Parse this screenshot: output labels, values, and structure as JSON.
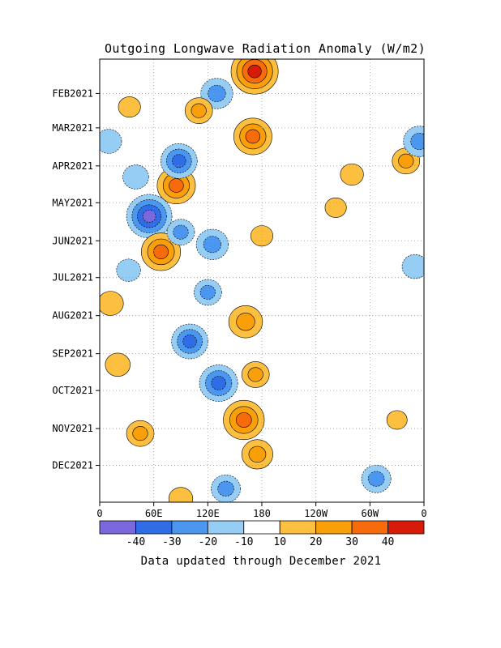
{
  "chart_data": {
    "type": "heatmap",
    "title": "Outgoing Longwave Radiation Anomaly (W/m2)",
    "xlabel": "",
    "ylabel": "",
    "x_tick_labels": [
      "0",
      "60E",
      "120E",
      "180",
      "120W",
      "60W",
      "0"
    ],
    "x_tick_longitudes": [
      0,
      60,
      120,
      180,
      240,
      300,
      360
    ],
    "y_tick_labels": [
      "FEB2021",
      "MAR2021",
      "APR2021",
      "MAY2021",
      "JUN2021",
      "JUL2021",
      "AUG2021",
      "SEP2021",
      "OCT2021",
      "NOV2021",
      "DEC2021"
    ],
    "time_range": [
      "2021-01-04",
      "2021-12-31"
    ],
    "grid": true,
    "colorbar": {
      "bins": [
        {
          "range": [
            -50,
            -40
          ],
          "color": "#7b68dd"
        },
        {
          "range": [
            -40,
            -30
          ],
          "color": "#2e6de6"
        },
        {
          "range": [
            -30,
            -20
          ],
          "color": "#4b96ee"
        },
        {
          "range": [
            -20,
            -10
          ],
          "color": "#96cdf5"
        },
        {
          "range": [
            -10,
            10
          ],
          "color": "#ffffff"
        },
        {
          "range": [
            10,
            20
          ],
          "color": "#fcbf3f"
        },
        {
          "range": [
            20,
            30
          ],
          "color": "#f99f0a"
        },
        {
          "range": [
            30,
            40
          ],
          "color": "#f86b0d"
        },
        {
          "range": [
            40,
            50
          ],
          "color": "#d81b08"
        }
      ],
      "labels": [
        "-40",
        "-30",
        "-20",
        "-10",
        "10",
        "20",
        "30",
        "40"
      ]
    },
    "anomaly_features": [
      {
        "lon": 172,
        "date": "2021-01-14",
        "value": 42
      },
      {
        "lon": 170,
        "date": "2021-03-08",
        "value": 32
      },
      {
        "lon": 85,
        "date": "2021-04-17",
        "value": 32
      },
      {
        "lon": 55,
        "date": "2021-05-12",
        "value": -40
      },
      {
        "lon": 68,
        "date": "2021-06-10",
        "value": 33
      },
      {
        "lon": 88,
        "date": "2021-03-28",
        "value": -30
      },
      {
        "lon": 130,
        "date": "2021-02-01",
        "value": -25
      },
      {
        "lon": 125,
        "date": "2021-06-04",
        "value": -25
      },
      {
        "lon": 120,
        "date": "2021-07-13",
        "value": -20
      },
      {
        "lon": 100,
        "date": "2021-08-22",
        "value": -30
      },
      {
        "lon": 132,
        "date": "2021-09-25",
        "value": -32
      },
      {
        "lon": 162,
        "date": "2021-08-06",
        "value": 27
      },
      {
        "lon": 173,
        "date": "2021-09-18",
        "value": 20
      },
      {
        "lon": 160,
        "date": "2021-10-25",
        "value": 35
      },
      {
        "lon": 175,
        "date": "2021-11-22",
        "value": 24
      },
      {
        "lon": 45,
        "date": "2021-11-05",
        "value": 20
      },
      {
        "lon": 140,
        "date": "2021-12-20",
        "value": -22
      },
      {
        "lon": 307,
        "date": "2021-12-12",
        "value": -22
      },
      {
        "lon": 340,
        "date": "2021-03-28",
        "value": 20
      },
      {
        "lon": 355,
        "date": "2021-03-12",
        "value": -25
      },
      {
        "lon": 350,
        "date": "2021-06-22",
        "value": -18
      },
      {
        "lon": 10,
        "date": "2021-03-12",
        "value": -18
      },
      {
        "lon": 40,
        "date": "2021-04-10",
        "value": -18
      },
      {
        "lon": 12,
        "date": "2021-07-22",
        "value": 18
      },
      {
        "lon": 20,
        "date": "2021-09-10",
        "value": 17
      },
      {
        "lon": 32,
        "date": "2021-06-25",
        "value": -16
      },
      {
        "lon": 110,
        "date": "2021-02-15",
        "value": 20
      },
      {
        "lon": 90,
        "date": "2021-05-25",
        "value": -20
      },
      {
        "lon": 180,
        "date": "2021-05-28",
        "value": 14
      },
      {
        "lon": 280,
        "date": "2021-04-08",
        "value": 15
      },
      {
        "lon": 262,
        "date": "2021-05-05",
        "value": 13
      },
      {
        "lon": 330,
        "date": "2021-10-25",
        "value": 12
      },
      {
        "lon": 33,
        "date": "2021-02-12",
        "value": 14
      },
      {
        "lon": 90,
        "date": "2021-12-28",
        "value": 16
      }
    ]
  },
  "footer": {
    "note": "Data updated through December 2021"
  }
}
